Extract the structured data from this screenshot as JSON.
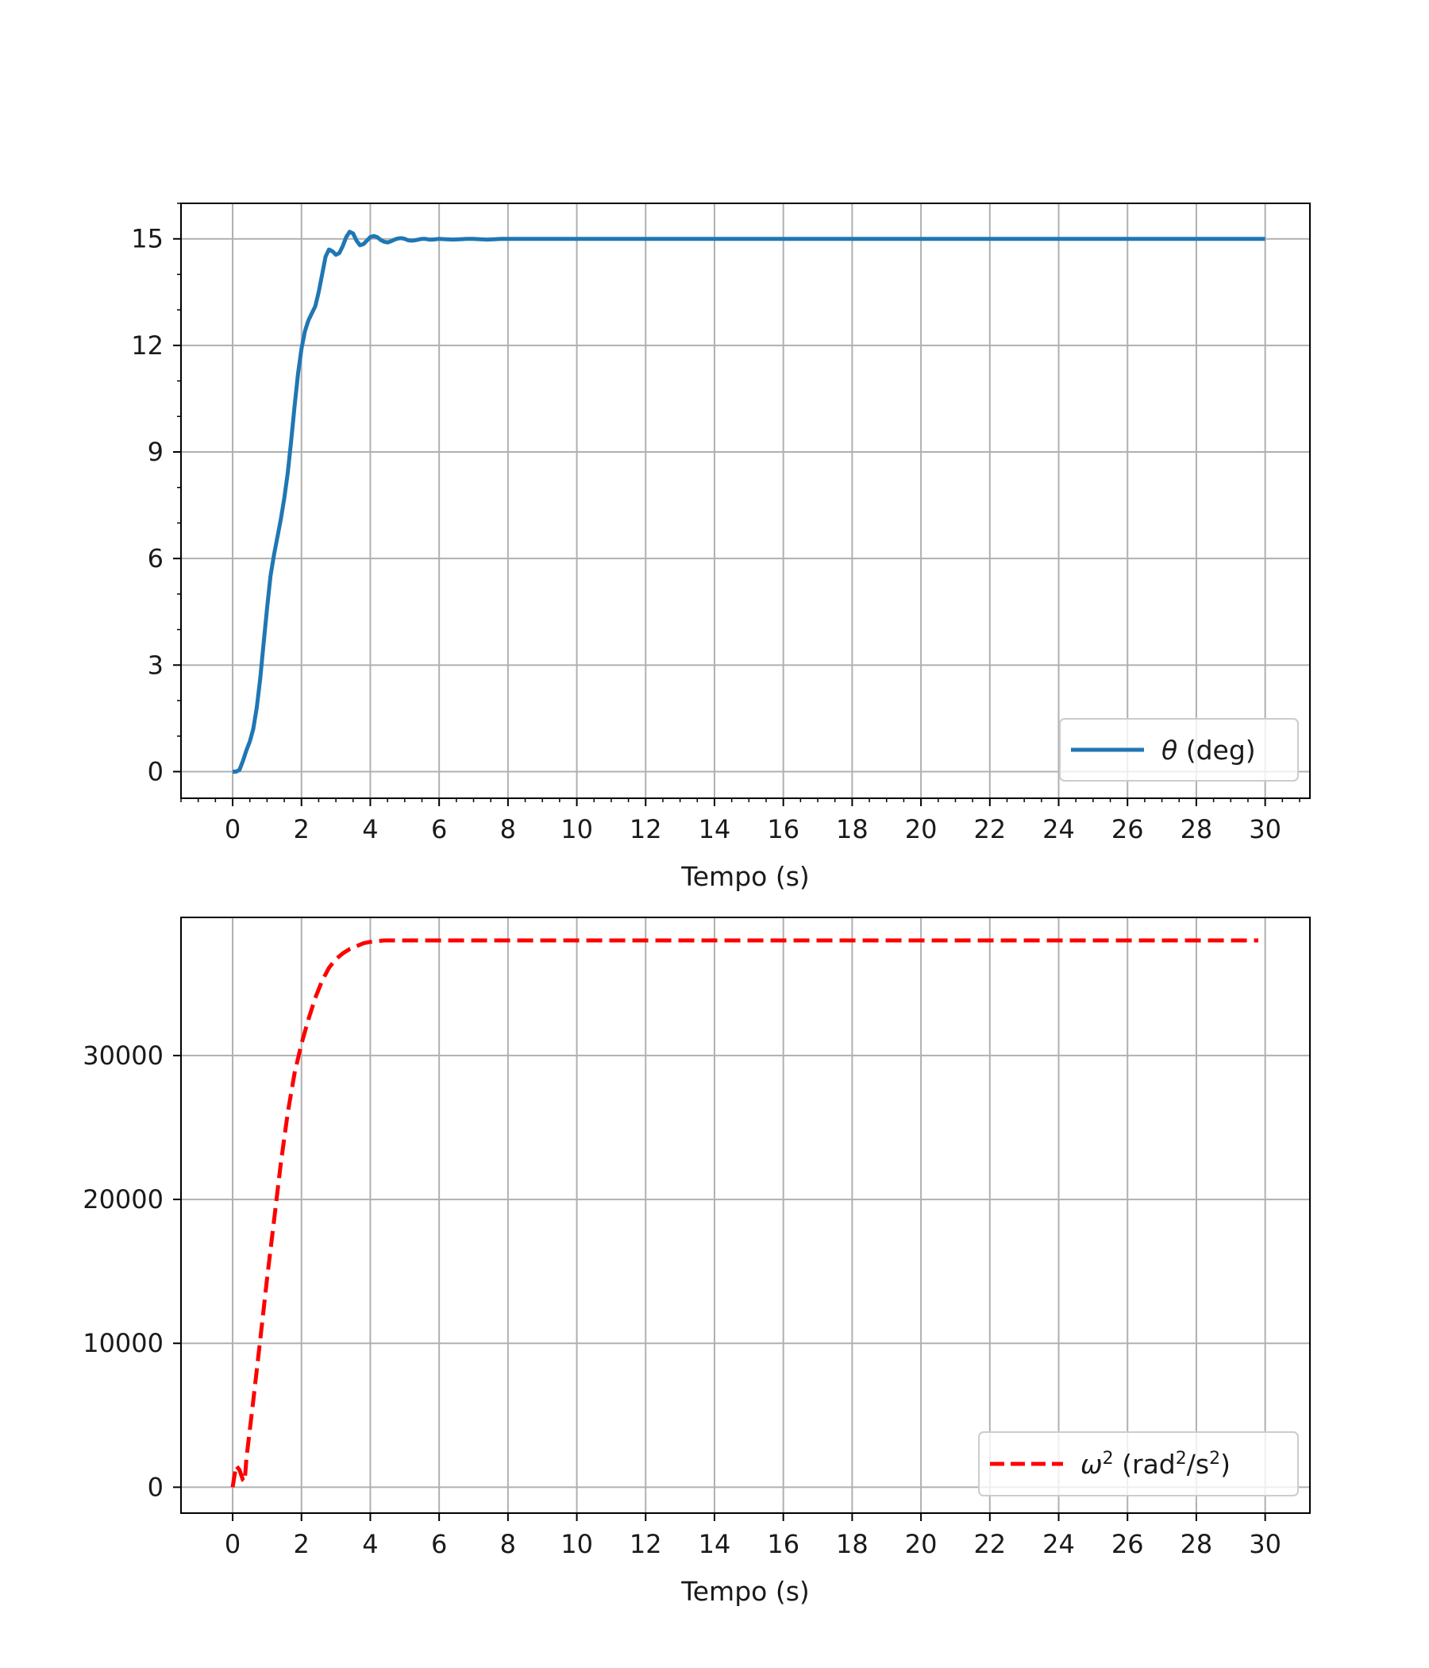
{
  "figure": {
    "background": "#ffffff"
  },
  "chart_data": [
    {
      "type": "line",
      "xlabel": "Tempo (s)",
      "ylabel": "",
      "xlim": [
        -1.5,
        31.3
      ],
      "ylim": [
        -0.75,
        16.0
      ],
      "xticks": [
        0,
        2,
        4,
        6,
        8,
        10,
        12,
        14,
        16,
        18,
        20,
        22,
        24,
        26,
        28,
        30
      ],
      "yticks": [
        0,
        3,
        6,
        9,
        12,
        15
      ],
      "x_minor_step": 0.5,
      "y_minor_step": 1,
      "grid": true,
      "legend_position": "lower-right",
      "series": [
        {
          "name": "θ (deg)",
          "legend_symbol": "θ",
          "legend_rest": " (deg)",
          "color": "#1f77b4",
          "dash": "solid",
          "x": [
            0,
            0.1,
            0.2,
            0.3,
            0.4,
            0.5,
            0.6,
            0.7,
            0.8,
            0.9,
            1.0,
            1.1,
            1.2,
            1.3,
            1.4,
            1.5,
            1.6,
            1.7,
            1.8,
            1.9,
            2.0,
            2.1,
            2.2,
            2.3,
            2.4,
            2.5,
            2.6,
            2.7,
            2.8,
            2.9,
            3.0,
            3.1,
            3.2,
            3.3,
            3.4,
            3.5,
            3.6,
            3.7,
            3.8,
            3.9,
            4.0,
            4.1,
            4.2,
            4.3,
            4.4,
            4.5,
            4.6,
            4.7,
            4.8,
            4.9,
            5.0,
            5.1,
            5.2,
            5.3,
            5.4,
            5.5,
            5.6,
            5.7,
            5.8,
            5.9,
            6.0,
            6.2,
            6.4,
            6.6,
            6.8,
            7.0,
            7.2,
            7.4,
            7.6,
            7.8,
            8.0,
            8.4,
            8.8,
            9.2,
            9.6,
            10,
            11,
            12,
            14,
            16,
            18,
            20,
            22,
            24,
            26,
            28,
            30
          ],
          "y": [
            0.0,
            0.0,
            0.05,
            0.3,
            0.6,
            0.85,
            1.2,
            1.8,
            2.6,
            3.6,
            4.6,
            5.5,
            6.1,
            6.6,
            7.1,
            7.7,
            8.4,
            9.3,
            10.3,
            11.2,
            11.9,
            12.4,
            12.7,
            12.9,
            13.1,
            13.5,
            14.0,
            14.5,
            14.7,
            14.65,
            14.55,
            14.6,
            14.8,
            15.05,
            15.2,
            15.15,
            14.95,
            14.82,
            14.85,
            14.95,
            15.05,
            15.08,
            15.05,
            14.97,
            14.92,
            14.9,
            14.93,
            14.98,
            15.01,
            15.02,
            15.0,
            14.96,
            14.95,
            14.96,
            14.98,
            15.0,
            15.0,
            14.98,
            14.98,
            14.99,
            15.0,
            14.99,
            14.98,
            14.99,
            15.0,
            15.0,
            14.99,
            14.98,
            14.99,
            15.0,
            15.0,
            15.0,
            15.0,
            15.0,
            15.0,
            15.0,
            15.0,
            15.0,
            15.0,
            15.0,
            15.0,
            15.0,
            15.0,
            15.0,
            15.0,
            15.0,
            15.0
          ]
        }
      ]
    },
    {
      "type": "line",
      "xlabel": "Tempo (s)",
      "ylabel": "",
      "xlim": [
        -1.5,
        31.3
      ],
      "ylim": [
        -1800,
        39600
      ],
      "xticks": [
        0,
        2,
        4,
        6,
        8,
        10,
        12,
        14,
        16,
        18,
        20,
        22,
        24,
        26,
        28,
        30
      ],
      "yticks": [
        0,
        10000,
        20000,
        30000
      ],
      "grid": true,
      "legend_position": "lower-right",
      "series": [
        {
          "name": "ω² (rad²/s²)",
          "legend_symbol": "ω",
          "legend_sup1": "2",
          "legend_mid": " (rad",
          "legend_sup2": "2",
          "legend_mid2": "/s",
          "legend_sup3": "2",
          "legend_end": ")",
          "color": "#ff0000",
          "dash": "dashed",
          "x": [
            0,
            0.1,
            0.2,
            0.3,
            0.35,
            0.4,
            0.6,
            0.8,
            1.0,
            1.2,
            1.4,
            1.6,
            1.8,
            2.0,
            2.2,
            2.4,
            2.6,
            2.8,
            3.0,
            3.2,
            3.4,
            3.6,
            3.8,
            4.0,
            4.2,
            4.4,
            5,
            10,
            15,
            20,
            25,
            29.8
          ],
          "y": [
            0,
            1500,
            1200,
            500,
            400,
            2000,
            6000,
            10200,
            14500,
            18500,
            22500,
            26000,
            28800,
            30800,
            32500,
            34000,
            35200,
            36100,
            36700,
            37100,
            37400,
            37600,
            37800,
            37900,
            37950,
            38000,
            38000,
            38000,
            38000,
            38000,
            38000,
            38000
          ]
        }
      ]
    }
  ]
}
